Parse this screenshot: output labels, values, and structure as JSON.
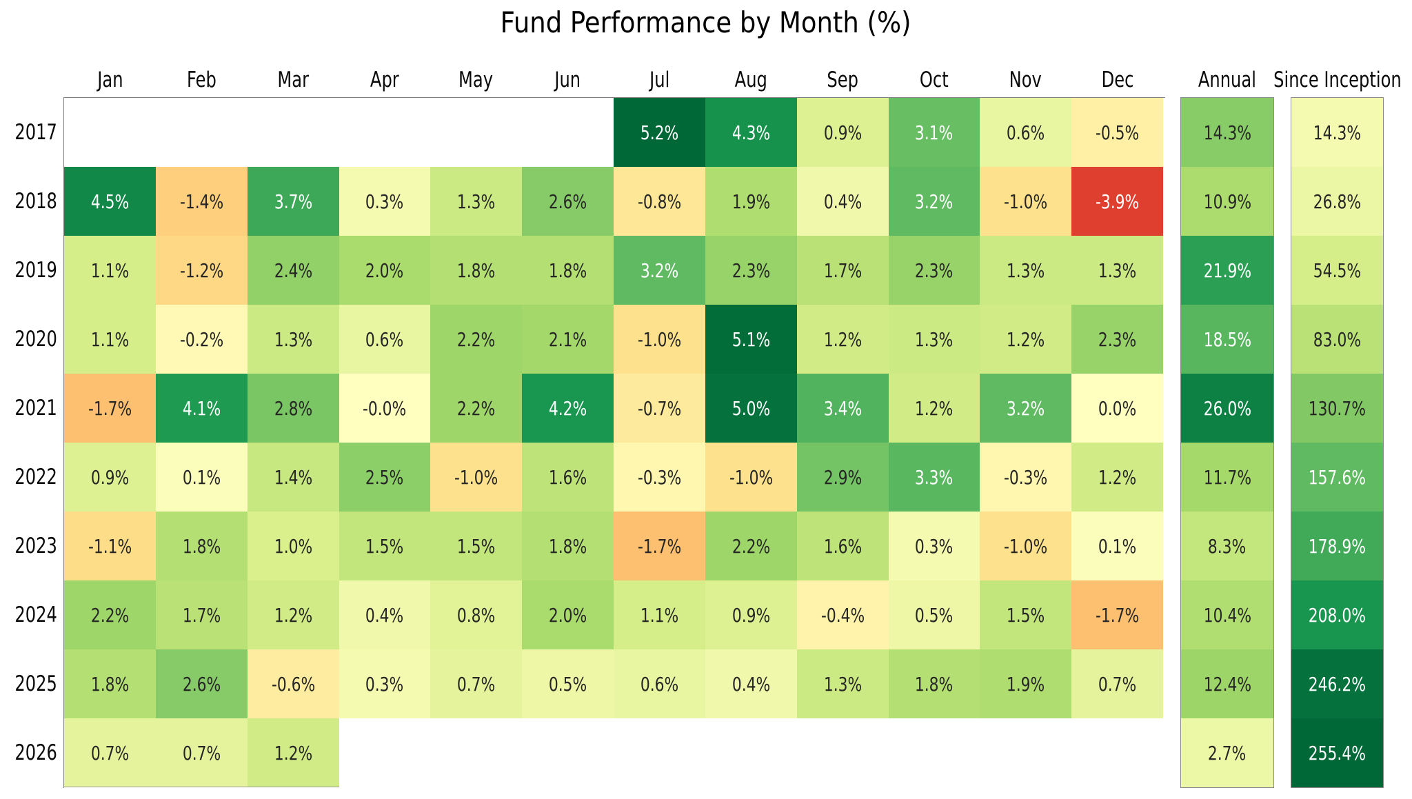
{
  "title": "Fund Performance by Month (%)",
  "chart_data": {
    "type": "heatmap",
    "title": "Fund Performance by Month (%)",
    "columns": [
      "Jan",
      "Feb",
      "Mar",
      "Apr",
      "May",
      "Jun",
      "Jul",
      "Aug",
      "Sep",
      "Oct",
      "Nov",
      "Dec"
    ],
    "extra_columns": [
      "Annual",
      "Since Inception"
    ],
    "rows": [
      {
        "year": "2017",
        "monthly": [
          null,
          null,
          null,
          null,
          null,
          null,
          "5.2%",
          "4.3%",
          "0.9%",
          "3.1%",
          "0.6%",
          "-0.5%"
        ],
        "annual": "14.3%",
        "since_inception": "14.3%"
      },
      {
        "year": "2018",
        "monthly": [
          "4.5%",
          "-1.4%",
          "3.7%",
          "0.3%",
          "1.3%",
          "2.6%",
          "-0.8%",
          "1.9%",
          "0.4%",
          "3.2%",
          "-1.0%",
          "-3.9%"
        ],
        "annual": "10.9%",
        "since_inception": "26.8%"
      },
      {
        "year": "2019",
        "monthly": [
          "1.1%",
          "-1.2%",
          "2.4%",
          "2.0%",
          "1.8%",
          "1.8%",
          "3.2%",
          "2.3%",
          "1.7%",
          "2.3%",
          "1.3%",
          "1.3%"
        ],
        "annual": "21.9%",
        "since_inception": "54.5%"
      },
      {
        "year": "2020",
        "monthly": [
          "1.1%",
          "-0.2%",
          "1.3%",
          "0.6%",
          "2.2%",
          "2.1%",
          "-1.0%",
          "5.1%",
          "1.2%",
          "1.3%",
          "1.2%",
          "2.3%"
        ],
        "annual": "18.5%",
        "since_inception": "83.0%"
      },
      {
        "year": "2021",
        "monthly": [
          "-1.7%",
          "4.1%",
          "2.8%",
          "-0.0%",
          "2.2%",
          "4.2%",
          "-0.7%",
          "5.0%",
          "3.4%",
          "1.2%",
          "3.2%",
          "0.0%"
        ],
        "annual": "26.0%",
        "since_inception": "130.7%"
      },
      {
        "year": "2022",
        "monthly": [
          "0.9%",
          "0.1%",
          "1.4%",
          "2.5%",
          "-1.0%",
          "1.6%",
          "-0.3%",
          "-1.0%",
          "2.9%",
          "3.3%",
          "-0.3%",
          "1.2%"
        ],
        "annual": "11.7%",
        "since_inception": "157.6%"
      },
      {
        "year": "2023",
        "monthly": [
          "-1.1%",
          "1.8%",
          "1.0%",
          "1.5%",
          "1.5%",
          "1.8%",
          "-1.7%",
          "2.2%",
          "1.6%",
          "0.3%",
          "-1.0%",
          "0.1%"
        ],
        "annual": "8.3%",
        "since_inception": "178.9%"
      },
      {
        "year": "2024",
        "monthly": [
          "2.2%",
          "1.7%",
          "1.2%",
          "0.4%",
          "0.8%",
          "2.0%",
          "1.1%",
          "0.9%",
          "-0.4%",
          "0.5%",
          "1.5%",
          "-1.7%"
        ],
        "annual": "10.4%",
        "since_inception": "208.0%"
      },
      {
        "year": "2025",
        "monthly": [
          "1.8%",
          "2.6%",
          "-0.6%",
          "0.3%",
          "0.7%",
          "0.5%",
          "0.6%",
          "0.4%",
          "1.3%",
          "1.8%",
          "1.9%",
          "0.7%"
        ],
        "annual": "12.4%",
        "since_inception": "246.2%"
      },
      {
        "year": "2026",
        "monthly": [
          "0.7%",
          "0.7%",
          "1.2%",
          null,
          null,
          null,
          null,
          null,
          null,
          null,
          null,
          null
        ],
        "annual": "2.7%",
        "since_inception": "255.4%"
      }
    ],
    "color_scale": {
      "name": "RdYlGn",
      "stops": [
        [
          0.0,
          "#a50026"
        ],
        [
          0.1,
          "#d73027"
        ],
        [
          0.2,
          "#f46d43"
        ],
        [
          0.3,
          "#fdae61"
        ],
        [
          0.4,
          "#fee08b"
        ],
        [
          0.5,
          "#ffffbf"
        ],
        [
          0.6,
          "#d9ef8b"
        ],
        [
          0.7,
          "#a6d96a"
        ],
        [
          0.8,
          "#66bd63"
        ],
        [
          0.9,
          "#1a9850"
        ],
        [
          1.0,
          "#006837"
        ]
      ],
      "monthly_range": [
        -5.2,
        5.2
      ],
      "annual_range": [
        -29,
        29
      ],
      "since_inception_range": [
        -255.4,
        255.4
      ],
      "empty_color": "#ffffff",
      "dark_text": "#262626",
      "light_text": "#ffffff",
      "luminance_threshold": 0.408,
      "grid_border_color": "#7f7f7f"
    },
    "legend": "none",
    "grid": "off",
    "xlabel": "",
    "ylabel": ""
  }
}
